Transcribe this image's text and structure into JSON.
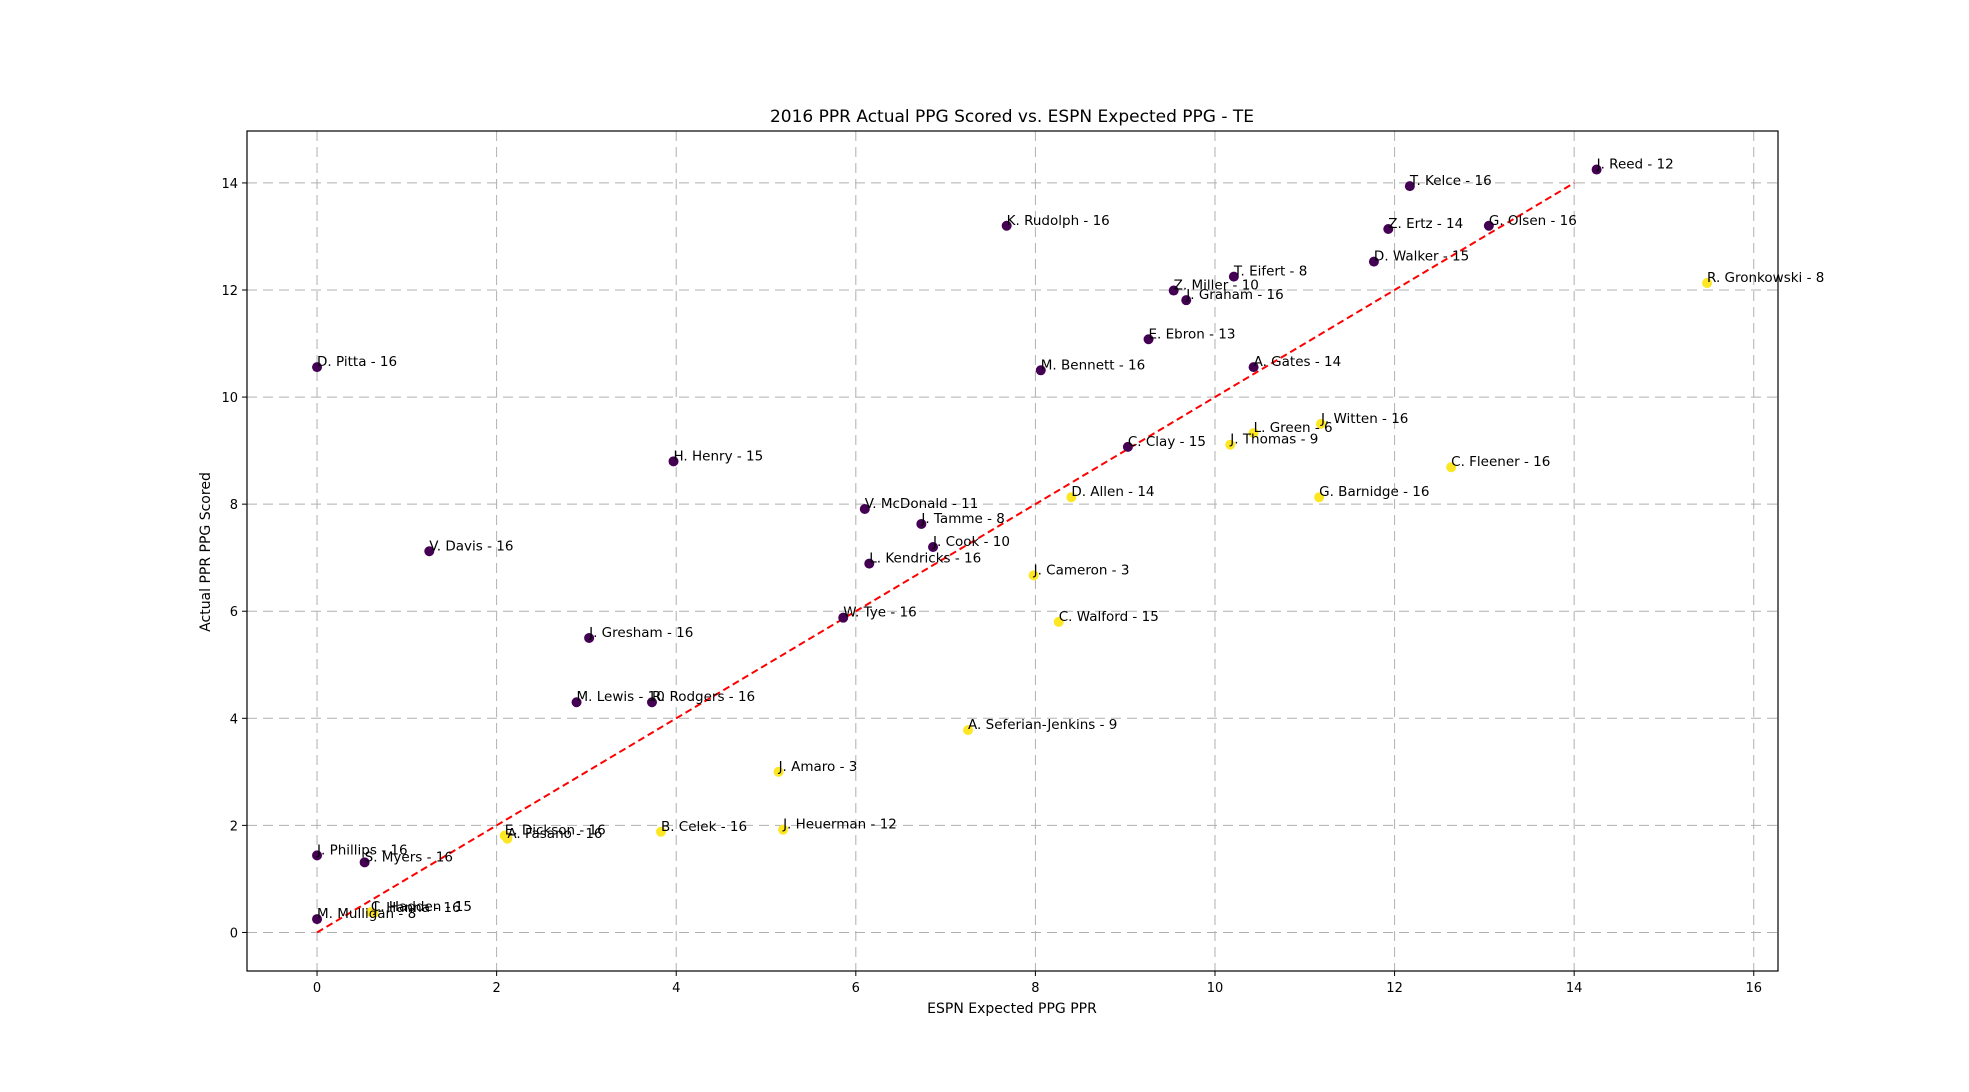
{
  "chart_data": {
    "type": "scatter",
    "title": "2016 PPR Actual PPG Scored vs. ESPN Expected PPG - TE",
    "xlabel": "ESPN Expected PPG PPR",
    "ylabel": "Actual PPR PPG Scored",
    "xlim": [
      -0.78,
      16.27
    ],
    "ylim": [
      -0.72,
      14.97
    ],
    "xticks": [
      0,
      2,
      4,
      6,
      8,
      10,
      12,
      14,
      16
    ],
    "yticks": [
      0,
      2,
      4,
      6,
      8,
      10,
      12,
      14
    ],
    "grid": true,
    "colors": {
      "purple": "#440154",
      "yellow": "#fde725",
      "reference_line": "#ff0000",
      "grid": "#b0b0b0"
    },
    "reference_line": {
      "x": [
        0,
        14
      ],
      "y": [
        0,
        14
      ]
    },
    "points": [
      {
        "label": "J. Reed - 12",
        "x": 14.25,
        "y": 14.25,
        "color": "purple"
      },
      {
        "label": "T. Kelce - 16",
        "x": 12.17,
        "y": 13.94,
        "color": "purple"
      },
      {
        "label": "K. Rudolph - 16",
        "x": 7.68,
        "y": 13.2,
        "color": "purple"
      },
      {
        "label": "Z. Ertz - 14",
        "x": 11.93,
        "y": 13.14,
        "color": "purple"
      },
      {
        "label": "G. Olsen - 16",
        "x": 13.05,
        "y": 13.2,
        "color": "purple"
      },
      {
        "label": "D. Walker - 15",
        "x": 11.77,
        "y": 12.53,
        "color": "purple"
      },
      {
        "label": "R. Gronkowski - 8",
        "x": 15.48,
        "y": 12.13,
        "color": "yellow"
      },
      {
        "label": "T. Eifert - 8",
        "x": 10.21,
        "y": 12.25,
        "color": "purple"
      },
      {
        "label": "Z. Miller - 10",
        "x": 9.54,
        "y": 11.99,
        "color": "purple"
      },
      {
        "label": "J. Graham - 16",
        "x": 9.68,
        "y": 11.81,
        "color": "purple"
      },
      {
        "label": "E. Ebron - 13",
        "x": 9.26,
        "y": 11.08,
        "color": "purple"
      },
      {
        "label": "D. Pitta - 16",
        "x": 0.0,
        "y": 10.56,
        "color": "purple"
      },
      {
        "label": "A. Gates - 14",
        "x": 10.43,
        "y": 10.56,
        "color": "purple"
      },
      {
        "label": "M. Bennett - 16",
        "x": 8.06,
        "y": 10.5,
        "color": "purple"
      },
      {
        "label": "J. Witten - 16",
        "x": 11.18,
        "y": 9.5,
        "color": "yellow"
      },
      {
        "label": "L. Green - 6",
        "x": 10.43,
        "y": 9.33,
        "color": "yellow"
      },
      {
        "label": "J. Thomas - 9",
        "x": 10.17,
        "y": 9.11,
        "color": "yellow"
      },
      {
        "label": "C. Clay - 15",
        "x": 9.03,
        "y": 9.07,
        "color": "purple"
      },
      {
        "label": "C. Fleener - 16",
        "x": 12.63,
        "y": 8.69,
        "color": "yellow"
      },
      {
        "label": "H. Henry - 15",
        "x": 3.97,
        "y": 8.8,
        "color": "purple"
      },
      {
        "label": "D. Allen - 14",
        "x": 8.4,
        "y": 8.13,
        "color": "yellow"
      },
      {
        "label": "G. Barnidge - 16",
        "x": 11.16,
        "y": 8.13,
        "color": "yellow"
      },
      {
        "label": "V. McDonald - 11",
        "x": 6.1,
        "y": 7.91,
        "color": "purple"
      },
      {
        "label": "J. Tamme - 8",
        "x": 6.73,
        "y": 7.63,
        "color": "purple"
      },
      {
        "label": "J. Cook - 10",
        "x": 6.86,
        "y": 7.2,
        "color": "purple"
      },
      {
        "label": "V. Davis - 16",
        "x": 1.25,
        "y": 7.12,
        "color": "purple"
      },
      {
        "label": "L. Kendricks - 16",
        "x": 6.15,
        "y": 6.89,
        "color": "purple"
      },
      {
        "label": "J. Cameron - 3",
        "x": 7.98,
        "y": 6.67,
        "color": "yellow"
      },
      {
        "label": "W. Tye - 16",
        "x": 5.86,
        "y": 5.88,
        "color": "purple"
      },
      {
        "label": "C. Walford - 15",
        "x": 8.26,
        "y": 5.8,
        "color": "yellow"
      },
      {
        "label": "J. Gresham - 16",
        "x": 3.03,
        "y": 5.5,
        "color": "purple"
      },
      {
        "label": "M. Lewis - 10",
        "x": 2.89,
        "y": 4.3,
        "color": "purple"
      },
      {
        "label": "R. Rodgers - 16",
        "x": 3.73,
        "y": 4.3,
        "color": "purple"
      },
      {
        "label": "A. Seferian-Jenkins - 9",
        "x": 7.25,
        "y": 3.78,
        "color": "yellow"
      },
      {
        "label": "J. Amaro - 3",
        "x": 5.14,
        "y": 3.0,
        "color": "yellow"
      },
      {
        "label": "B. Celek - 16",
        "x": 3.83,
        "y": 1.88,
        "color": "yellow"
      },
      {
        "label": "J. Heuerman - 12",
        "x": 5.19,
        "y": 1.92,
        "color": "yellow"
      },
      {
        "label": "E. Dickson - 16",
        "x": 2.09,
        "y": 1.81,
        "color": "yellow"
      },
      {
        "label": "A. Fasano - 16",
        "x": 2.12,
        "y": 1.75,
        "color": "yellow"
      },
      {
        "label": "J. Phillips - 16",
        "x": 0.0,
        "y": 1.44,
        "color": "purple"
      },
      {
        "label": "S. Myers - 16",
        "x": 0.53,
        "y": 1.31,
        "color": "purple"
      },
      {
        "label": "M. Mulligan - 8",
        "x": 0.0,
        "y": 0.25,
        "color": "purple"
      },
      {
        "label": "J. Hanna - 16",
        "x": 0.63,
        "y": 0.36,
        "color": "yellow"
      },
      {
        "label": "C. Hadden - 15",
        "x": 0.6,
        "y": 0.38,
        "color": "yellow"
      }
    ]
  }
}
